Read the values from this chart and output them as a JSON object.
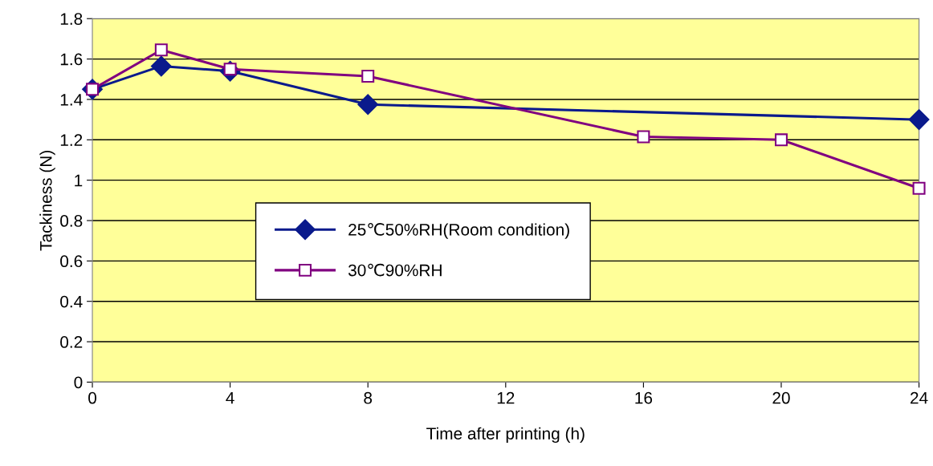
{
  "chart_data": {
    "type": "line",
    "xlabel": "Time after printing (h)",
    "ylabel": "Tackiness (N)",
    "xlim": [
      0,
      24
    ],
    "xticks": [
      0,
      4,
      8,
      12,
      16,
      20,
      24
    ],
    "ylim": [
      0,
      1.8
    ],
    "yticks": [
      0,
      0.2,
      0.4,
      0.6,
      0.8,
      1,
      1.2,
      1.4,
      1.6,
      1.8
    ],
    "grid": "y",
    "legend": "center",
    "series": [
      {
        "name": "25℃50%RH(Room condition)",
        "color": "#0a1a8c",
        "marker": "diamond",
        "x": [
          0,
          2,
          4,
          8,
          24
        ],
        "values": [
          1.45,
          1.565,
          1.54,
          1.375,
          1.3
        ]
      },
      {
        "name": "30℃90%RH",
        "color": "#800080",
        "marker": "square",
        "x": [
          0,
          2,
          4,
          8,
          16,
          20,
          24
        ],
        "values": [
          1.45,
          1.645,
          1.55,
          1.515,
          1.215,
          1.2,
          0.96
        ]
      }
    ]
  }
}
